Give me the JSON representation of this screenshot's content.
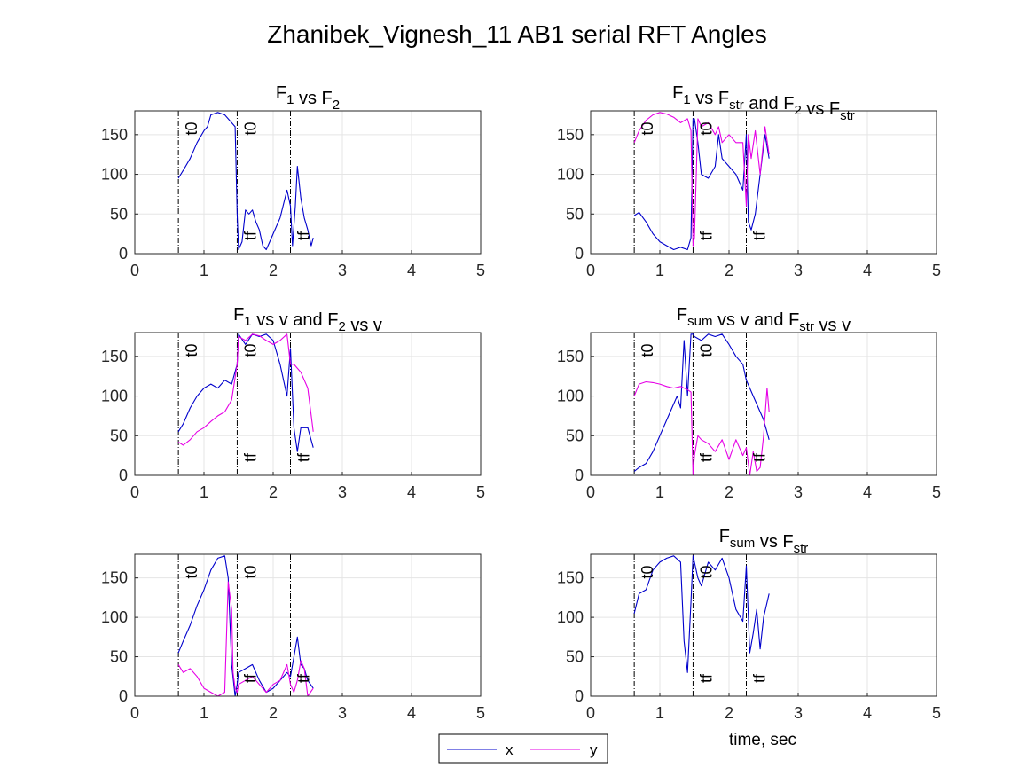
{
  "figure": {
    "title": "Zhanibek_Vignesh_11 AB1 serial RFT Angles",
    "xlabel": "time, sec",
    "legend": {
      "placement": "bottom-center",
      "entries": [
        {
          "label": "x",
          "color": "#0000cc"
        },
        {
          "label": "y",
          "color": "#e600e6"
        }
      ]
    },
    "colors": {
      "x": "#0000cc",
      "y": "#e600e6",
      "marker_line": "#000000",
      "grid": "#e5e5e5"
    }
  },
  "chart_data": [
    {
      "type": "line",
      "title_parts": [
        {
          "t": "F"
        },
        {
          "t": "1",
          "sub": true
        },
        {
          "t": " vs F"
        },
        {
          "t": "2",
          "sub": true
        }
      ],
      "xlim": [
        0,
        5
      ],
      "ylim": [
        0,
        180
      ],
      "xticks": [
        0,
        1,
        2,
        3,
        4,
        5
      ],
      "yticks": [
        0,
        50,
        100,
        150
      ],
      "grid": true,
      "markers": [
        {
          "x": 0.63,
          "label": "t0"
        },
        {
          "x": 1.48,
          "label": "t0"
        },
        {
          "x": 1.48,
          "label": "tf"
        },
        {
          "x": 2.25,
          "label": "tf"
        }
      ],
      "series": [
        {
          "key": "x",
          "x": [
            0.63,
            0.7,
            0.8,
            0.9,
            1.0,
            1.05,
            1.1,
            1.2,
            1.3,
            1.4,
            1.45,
            1.48,
            1.5,
            1.55,
            1.6,
            1.65,
            1.7,
            1.75,
            1.8,
            1.85,
            1.9,
            1.95,
            2.0,
            2.1,
            2.2,
            2.25,
            2.28,
            2.32,
            2.35,
            2.4,
            2.45,
            2.5,
            2.55,
            2.58
          ],
          "y": [
            95,
            105,
            120,
            140,
            155,
            160,
            175,
            178,
            175,
            165,
            160,
            50,
            5,
            15,
            55,
            50,
            55,
            40,
            30,
            10,
            5,
            15,
            25,
            45,
            80,
            60,
            10,
            60,
            110,
            70,
            45,
            30,
            10,
            20
          ]
        }
      ]
    },
    {
      "type": "line",
      "title_parts": [
        {
          "t": "F"
        },
        {
          "t": "1",
          "sub": true
        },
        {
          "t": " vs F"
        },
        {
          "t": "str",
          "sub": true
        },
        {
          "t": " and F"
        },
        {
          "t": "2",
          "sub": true
        },
        {
          "t": " vs F"
        },
        {
          "t": "str",
          "sub": true
        }
      ],
      "xlim": [
        0,
        5
      ],
      "ylim": [
        0,
        180
      ],
      "xticks": [
        0,
        1,
        2,
        3,
        4,
        5
      ],
      "yticks": [
        0,
        50,
        100,
        150
      ],
      "grid": true,
      "markers": [
        {
          "x": 0.63,
          "label": "t0"
        },
        {
          "x": 1.48,
          "label": "t0"
        },
        {
          "x": 1.48,
          "label": "tf"
        },
        {
          "x": 2.25,
          "label": "tf"
        }
      ],
      "series": [
        {
          "key": "x",
          "x": [
            0.63,
            0.7,
            0.8,
            0.9,
            1.0,
            1.1,
            1.2,
            1.3,
            1.4,
            1.45,
            1.48,
            1.5,
            1.55,
            1.6,
            1.7,
            1.8,
            1.85,
            1.9,
            2.0,
            2.1,
            2.2,
            2.25,
            2.28,
            2.32,
            2.38,
            2.45,
            2.52,
            2.58
          ],
          "y": [
            48,
            52,
            40,
            25,
            15,
            10,
            5,
            8,
            5,
            20,
            170,
            170,
            140,
            100,
            95,
            110,
            150,
            120,
            110,
            100,
            80,
            150,
            40,
            30,
            50,
            100,
            150,
            120
          ]
        },
        {
          "key": "y",
          "x": [
            0.63,
            0.7,
            0.8,
            0.9,
            1.0,
            1.1,
            1.2,
            1.3,
            1.4,
            1.45,
            1.48,
            1.5,
            1.55,
            1.6,
            1.7,
            1.8,
            1.85,
            1.9,
            2.0,
            2.1,
            2.2,
            2.25,
            2.28,
            2.32,
            2.38,
            2.45,
            2.52,
            2.58
          ],
          "y": [
            140,
            155,
            168,
            175,
            178,
            176,
            172,
            165,
            170,
            155,
            10,
            20,
            170,
            160,
            165,
            150,
            160,
            140,
            150,
            140,
            140,
            60,
            150,
            120,
            155,
            100,
            160,
            125
          ]
        }
      ]
    },
    {
      "type": "line",
      "title_parts": [
        {
          "t": "F"
        },
        {
          "t": "1",
          "sub": true
        },
        {
          "t": " vs v and F"
        },
        {
          "t": "2",
          "sub": true
        },
        {
          "t": " vs v"
        }
      ],
      "xlim": [
        0,
        5
      ],
      "ylim": [
        0,
        180
      ],
      "xticks": [
        0,
        1,
        2,
        3,
        4,
        5
      ],
      "yticks": [
        0,
        50,
        100,
        150
      ],
      "grid": true,
      "markers": [
        {
          "x": 0.63,
          "label": "t0"
        },
        {
          "x": 1.48,
          "label": "t0"
        },
        {
          "x": 1.48,
          "label": "tf"
        },
        {
          "x": 2.25,
          "label": "tf"
        }
      ],
      "series": [
        {
          "key": "x",
          "x": [
            0.63,
            0.7,
            0.8,
            0.9,
            1.0,
            1.1,
            1.2,
            1.3,
            1.4,
            1.48,
            1.5,
            1.6,
            1.7,
            1.8,
            1.9,
            2.0,
            2.1,
            2.2,
            2.25,
            2.3,
            2.35,
            2.4,
            2.5,
            2.58
          ],
          "y": [
            55,
            65,
            85,
            100,
            110,
            115,
            110,
            120,
            115,
            140,
            178,
            165,
            178,
            175,
            178,
            170,
            140,
            100,
            160,
            60,
            30,
            60,
            60,
            35
          ]
        },
        {
          "key": "y",
          "x": [
            0.63,
            0.7,
            0.8,
            0.9,
            1.0,
            1.1,
            1.2,
            1.3,
            1.4,
            1.48,
            1.5,
            1.6,
            1.7,
            1.8,
            1.9,
            2.0,
            2.1,
            2.2,
            2.25,
            2.3,
            2.4,
            2.5,
            2.58
          ],
          "y": [
            42,
            38,
            45,
            55,
            60,
            68,
            75,
            80,
            95,
            140,
            175,
            170,
            178,
            176,
            170,
            165,
            170,
            178,
            140,
            140,
            130,
            110,
            55
          ]
        }
      ]
    },
    {
      "type": "line",
      "title_parts": [
        {
          "t": "F"
        },
        {
          "t": "sum",
          "sub": true
        },
        {
          "t": " vs v and F"
        },
        {
          "t": "str",
          "sub": true
        },
        {
          "t": " vs v"
        }
      ],
      "xlim": [
        0,
        5
      ],
      "ylim": [
        0,
        180
      ],
      "xticks": [
        0,
        1,
        2,
        3,
        4,
        5
      ],
      "yticks": [
        0,
        50,
        100,
        150
      ],
      "grid": true,
      "markers": [
        {
          "x": 0.63,
          "label": "t0"
        },
        {
          "x": 1.48,
          "label": "t0"
        },
        {
          "x": 1.48,
          "label": "tf"
        },
        {
          "x": 2.25,
          "label": "tf"
        }
      ],
      "series": [
        {
          "key": "x",
          "x": [
            0.63,
            0.7,
            0.8,
            0.9,
            1.0,
            1.1,
            1.2,
            1.25,
            1.3,
            1.35,
            1.4,
            1.45,
            1.48,
            1.5,
            1.6,
            1.7,
            1.8,
            1.9,
            2.0,
            2.1,
            2.2,
            2.25,
            2.3,
            2.35,
            2.4,
            2.5,
            2.58
          ],
          "y": [
            5,
            10,
            15,
            30,
            50,
            70,
            90,
            100,
            85,
            170,
            100,
            178,
            178,
            175,
            170,
            178,
            175,
            178,
            165,
            150,
            140,
            120,
            110,
            100,
            90,
            70,
            45
          ]
        },
        {
          "key": "y",
          "x": [
            0.63,
            0.7,
            0.8,
            0.9,
            1.0,
            1.1,
            1.2,
            1.3,
            1.4,
            1.45,
            1.48,
            1.5,
            1.55,
            1.6,
            1.7,
            1.8,
            1.9,
            2.0,
            2.1,
            2.2,
            2.25,
            2.3,
            2.35,
            2.4,
            2.45,
            2.5,
            2.55,
            2.58
          ],
          "y": [
            100,
            115,
            118,
            117,
            115,
            112,
            110,
            112,
            108,
            105,
            0,
            25,
            50,
            45,
            40,
            30,
            45,
            20,
            45,
            25,
            35,
            0,
            30,
            5,
            10,
            50,
            110,
            80
          ]
        }
      ]
    },
    {
      "type": "line",
      "title_parts": [],
      "xlim": [
        0,
        5
      ],
      "ylim": [
        0,
        180
      ],
      "xticks": [
        0,
        1,
        2,
        3,
        4,
        5
      ],
      "yticks": [
        0,
        50,
        100,
        150
      ],
      "grid": true,
      "markers": [
        {
          "x": 0.63,
          "label": "t0"
        },
        {
          "x": 1.48,
          "label": "t0"
        },
        {
          "x": 1.48,
          "label": "tf"
        },
        {
          "x": 2.25,
          "label": "tf"
        }
      ],
      "series": [
        {
          "key": "x",
          "x": [
            0.63,
            0.7,
            0.8,
            0.9,
            1.0,
            1.1,
            1.2,
            1.3,
            1.35,
            1.4,
            1.45,
            1.48,
            1.5,
            1.6,
            1.7,
            1.8,
            1.9,
            2.0,
            2.1,
            2.2,
            2.25,
            2.3,
            2.35,
            2.4,
            2.45,
            2.5,
            2.58
          ],
          "y": [
            55,
            70,
            90,
            115,
            135,
            160,
            175,
            178,
            150,
            40,
            0,
            15,
            30,
            35,
            40,
            20,
            5,
            10,
            20,
            30,
            25,
            50,
            75,
            40,
            35,
            20,
            10
          ]
        },
        {
          "key": "y",
          "x": [
            0.63,
            0.7,
            0.8,
            0.9,
            1.0,
            1.1,
            1.2,
            1.3,
            1.35,
            1.4,
            1.42,
            1.45,
            1.48,
            1.5,
            1.6,
            1.7,
            1.8,
            1.9,
            2.0,
            2.1,
            2.2,
            2.25,
            2.3,
            2.35,
            2.4,
            2.45,
            2.5,
            2.58
          ],
          "y": [
            40,
            30,
            35,
            25,
            10,
            5,
            0,
            5,
            145,
            110,
            30,
            10,
            5,
            15,
            20,
            25,
            15,
            5,
            15,
            20,
            40,
            15,
            5,
            20,
            45,
            35,
            0,
            10
          ]
        }
      ]
    },
    {
      "type": "line",
      "title_parts": [
        {
          "t": "F"
        },
        {
          "t": "sum",
          "sub": true
        },
        {
          "t": " vs F"
        },
        {
          "t": "str",
          "sub": true
        }
      ],
      "xlim": [
        0,
        5
      ],
      "ylim": [
        0,
        180
      ],
      "xticks": [
        0,
        1,
        2,
        3,
        4,
        5
      ],
      "yticks": [
        0,
        50,
        100,
        150
      ],
      "grid": true,
      "markers": [
        {
          "x": 0.63,
          "label": "t0"
        },
        {
          "x": 1.48,
          "label": "t0"
        },
        {
          "x": 1.48,
          "label": "tf"
        },
        {
          "x": 2.25,
          "label": "tf"
        }
      ],
      "series": [
        {
          "key": "x",
          "x": [
            0.63,
            0.7,
            0.8,
            0.9,
            1.0,
            1.1,
            1.2,
            1.3,
            1.35,
            1.4,
            1.45,
            1.48,
            1.5,
            1.55,
            1.6,
            1.7,
            1.8,
            1.9,
            2.0,
            2.1,
            2.2,
            2.25,
            2.3,
            2.35,
            2.4,
            2.45,
            2.5,
            2.58
          ],
          "y": [
            105,
            130,
            135,
            160,
            170,
            175,
            178,
            170,
            70,
            30,
            120,
            178,
            170,
            150,
            140,
            170,
            160,
            175,
            150,
            110,
            95,
            165,
            55,
            80,
            110,
            60,
            100,
            130
          ]
        }
      ]
    }
  ]
}
